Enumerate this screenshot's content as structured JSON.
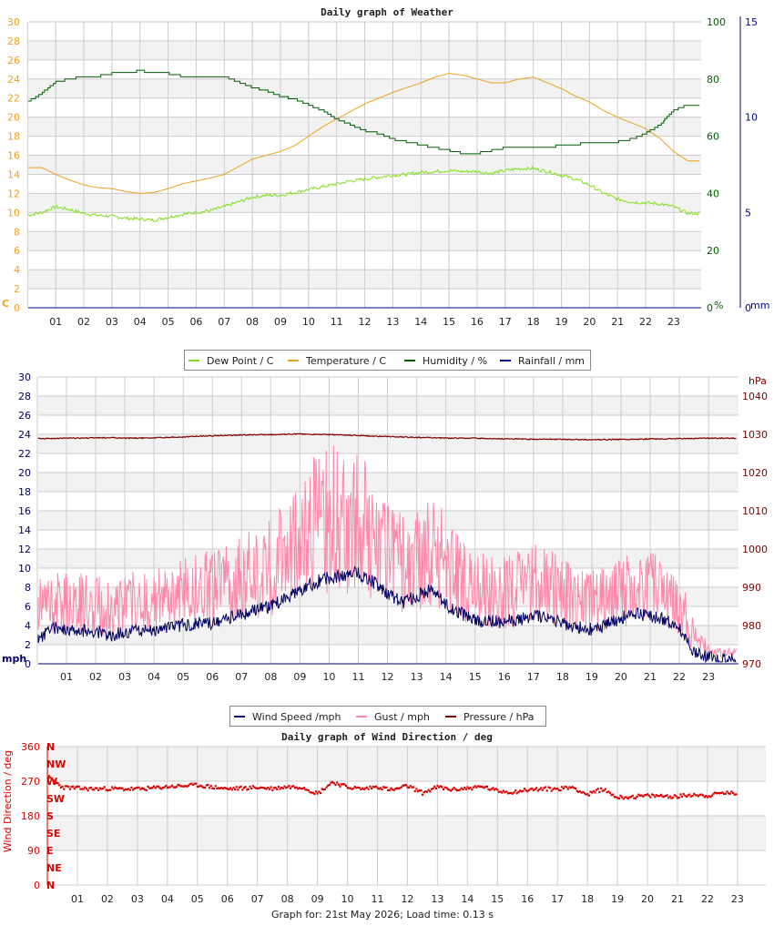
{
  "footer": "Graph for: 21st May 2026; Load time: 0.13 s",
  "colors": {
    "temperature": "#f0a020",
    "dewpoint": "#80e020",
    "humidity": "#006000",
    "rainfall": "#000099",
    "wind": "#000066",
    "gust": "#ff88aa",
    "pressure": "#800000",
    "direction": "#dd0000",
    "band": "#f2f2f2",
    "grid": "#cccccc"
  },
  "chart_data": [
    {
      "type": "line",
      "title": "Daily graph of Weather",
      "x_ticks": [
        "01",
        "02",
        "03",
        "04",
        "05",
        "06",
        "07",
        "08",
        "09",
        "10",
        "11",
        "12",
        "13",
        "14",
        "15",
        "16",
        "17",
        "18",
        "19",
        "20",
        "21",
        "22",
        "23"
      ],
      "left_axis": {
        "unit": "C",
        "range": [
          0,
          30
        ],
        "ticks": [
          "0",
          "2",
          "4",
          "6",
          "8",
          "10",
          "12",
          "14",
          "16",
          "18",
          "20",
          "22",
          "24",
          "26",
          "28",
          "30"
        ]
      },
      "right_axis_1": {
        "unit": "%",
        "range": [
          0,
          100
        ],
        "ticks": [
          "0",
          "20",
          "40",
          "60",
          "80",
          "100"
        ]
      },
      "right_axis_2": {
        "unit": "mm",
        "range": [
          0,
          15
        ],
        "ticks": [
          "0",
          "5",
          "10",
          "15"
        ]
      },
      "legend": [
        "Dew Point / C",
        "Temperature / C",
        "Humidity / %",
        "Rainfall / mm"
      ],
      "x_hours": [
        0,
        0.5,
        1,
        1.5,
        2,
        2.5,
        3,
        3.5,
        4,
        4.5,
        5,
        5.5,
        6,
        6.5,
        7,
        7.5,
        8,
        8.5,
        9,
        9.5,
        10,
        10.5,
        11,
        11.5,
        12,
        12.5,
        13,
        13.5,
        14,
        14.5,
        15,
        15.5,
        16,
        16.5,
        17,
        17.5,
        18,
        18.5,
        19,
        19.5,
        20,
        20.5,
        21,
        21.5,
        22,
        22.5,
        23,
        23.5
      ],
      "series": [
        {
          "name": "Temperature / C",
          "axis": "left",
          "values": [
            14.7,
            14.7,
            14.0,
            13.4,
            12.9,
            12.6,
            12.5,
            12.2,
            12.0,
            12.1,
            12.5,
            13.0,
            13.3,
            13.6,
            14.0,
            14.8,
            15.6,
            16.0,
            16.4,
            17.0,
            18.0,
            19.0,
            19.8,
            20.6,
            21.4,
            22.0,
            22.6,
            23.1,
            23.6,
            24.2,
            24.6,
            24.4,
            24.0,
            23.6,
            23.6,
            24.0,
            24.2,
            23.6,
            23.0,
            22.2,
            21.6,
            20.7,
            20.0,
            19.4,
            18.8,
            17.8,
            16.4,
            15.4
          ]
        },
        {
          "name": "Dew Point / C",
          "axis": "left",
          "values": [
            9.7,
            10.0,
            10.6,
            10.3,
            9.9,
            9.7,
            9.6,
            9.4,
            9.3,
            9.2,
            9.5,
            9.8,
            10.0,
            10.2,
            10.6,
            11.1,
            11.6,
            11.8,
            11.8,
            12.1,
            12.4,
            12.7,
            13.0,
            13.3,
            13.5,
            13.7,
            13.9,
            14.0,
            14.2,
            14.3,
            14.4,
            14.3,
            14.3,
            14.1,
            14.4,
            14.6,
            14.6,
            14.3,
            13.9,
            13.5,
            12.9,
            12.0,
            11.4,
            11.1,
            11.0,
            10.9,
            10.6,
            9.9
          ]
        },
        {
          "name": "Humidity / %",
          "axis": "right_1",
          "values": [
            72,
            75,
            79,
            80,
            81,
            81,
            82,
            82,
            83,
            82,
            82,
            81,
            81,
            81,
            81,
            79,
            77,
            76,
            74,
            73,
            71,
            69,
            66,
            64,
            62,
            61,
            59,
            58,
            57,
            56,
            55,
            54,
            54,
            55,
            56,
            56,
            56,
            56,
            57,
            57,
            58,
            58,
            58,
            59,
            61,
            64,
            69,
            71
          ]
        },
        {
          "name": "Rainfall / mm",
          "axis": "right_2",
          "values": [
            0,
            0,
            0,
            0,
            0,
            0,
            0,
            0,
            0,
            0,
            0,
            0,
            0,
            0,
            0,
            0,
            0,
            0,
            0,
            0,
            0,
            0,
            0,
            0,
            0,
            0,
            0,
            0,
            0,
            0,
            0,
            0,
            0,
            0,
            0,
            0,
            0,
            0,
            0,
            0,
            0,
            0,
            0,
            0,
            0,
            0,
            0,
            0
          ]
        }
      ]
    },
    {
      "type": "line",
      "title": "",
      "x_ticks": [
        "01",
        "02",
        "03",
        "04",
        "05",
        "06",
        "07",
        "08",
        "09",
        "10",
        "11",
        "12",
        "13",
        "14",
        "15",
        "16",
        "17",
        "18",
        "19",
        "20",
        "21",
        "22",
        "23"
      ],
      "left_axis": {
        "unit": "mph",
        "range": [
          0,
          30
        ],
        "ticks": [
          "0",
          "2",
          "4",
          "6",
          "8",
          "10",
          "12",
          "14",
          "16",
          "18",
          "20",
          "22",
          "24",
          "26",
          "28",
          "30"
        ]
      },
      "right_axis": {
        "unit": "hPa",
        "range": [
          970,
          1045
        ],
        "ticks": [
          "970",
          "980",
          "990",
          "1000",
          "1010",
          "1020",
          "1030",
          "1040"
        ]
      },
      "legend": [
        "Wind Speed /mph",
        "Gust / mph",
        "Pressure / hPa"
      ],
      "x_hours": [
        0,
        0.5,
        1,
        1.5,
        2,
        2.5,
        3,
        3.5,
        4,
        4.5,
        5,
        5.5,
        6,
        6.5,
        7,
        7.5,
        8,
        8.5,
        9,
        9.5,
        10,
        10.5,
        11,
        11.5,
        12,
        12.5,
        13,
        13.5,
        14,
        14.5,
        15,
        15.5,
        16,
        16.5,
        17,
        17.5,
        18,
        18.5,
        19,
        19.5,
        20,
        20.5,
        21,
        21.5,
        22,
        22.5,
        23,
        23.5
      ],
      "series": [
        {
          "name": "Wind Speed /mph",
          "axis": "left",
          "values": [
            2.5,
            3.8,
            3.6,
            3.5,
            3.4,
            3.0,
            3.3,
            3.5,
            3.3,
            3.8,
            4.1,
            4.2,
            4.3,
            4.8,
            5.2,
            5.6,
            6.0,
            6.8,
            7.6,
            8.5,
            9.0,
            9.3,
            9.5,
            8.6,
            7.4,
            6.4,
            7.1,
            7.7,
            6.2,
            5.3,
            4.5,
            4.4,
            4.4,
            4.6,
            5.1,
            4.7,
            4.2,
            3.8,
            3.6,
            4.1,
            4.8,
            5.2,
            5.0,
            4.6,
            3.7,
            1.3,
            0.6,
            0.4
          ]
        },
        {
          "name": "Gust / mph",
          "axis": "left",
          "values": [
            6.5,
            6.8,
            6.8,
            6.9,
            6.6,
            6.3,
            6.6,
            7.2,
            7.1,
            7.6,
            8.2,
            8.4,
            8.5,
            9.2,
            9.6,
            10.2,
            10.8,
            12.5,
            14.5,
            15.8,
            16.5,
            16.4,
            16.0,
            14.5,
            12.8,
            11.5,
            11.8,
            12.4,
            11.5,
            9.8,
            8.5,
            8.0,
            8.0,
            8.6,
            9.3,
            8.8,
            8.0,
            7.3,
            7.0,
            7.6,
            8.3,
            8.7,
            8.4,
            7.9,
            6.8,
            3.2,
            1.6,
            1.2
          ]
        },
        {
          "name": "Pressure / hPa",
          "axis": "right",
          "values": [
            1028.9,
            1028.9,
            1029.0,
            1029.0,
            1029.1,
            1029.1,
            1029.0,
            1029.0,
            1029.1,
            1029.2,
            1029.3,
            1029.5,
            1029.6,
            1029.7,
            1029.8,
            1029.9,
            1029.9,
            1030.0,
            1030.1,
            1030.0,
            1029.9,
            1029.8,
            1029.7,
            1029.5,
            1029.4,
            1029.3,
            1029.2,
            1029.1,
            1029.0,
            1029.0,
            1029.0,
            1028.9,
            1028.8,
            1028.8,
            1028.7,
            1028.7,
            1028.7,
            1028.6,
            1028.6,
            1028.6,
            1028.7,
            1028.7,
            1028.8,
            1028.8,
            1028.9,
            1028.9,
            1029.0,
            1029.0
          ]
        }
      ]
    },
    {
      "type": "scatter",
      "title": "Daily graph of Wind Direction / deg",
      "ylabel": "Wind Direction / deg",
      "x_ticks": [
        "01",
        "02",
        "03",
        "04",
        "05",
        "06",
        "07",
        "08",
        "09",
        "10",
        "11",
        "12",
        "13",
        "14",
        "15",
        "16",
        "17",
        "18",
        "19",
        "20",
        "21",
        "22",
        "23"
      ],
      "y_range": [
        0,
        360
      ],
      "y_ticks": [
        "0",
        "90",
        "180",
        "270",
        "360"
      ],
      "compass_labels": [
        "N",
        "NE",
        "E",
        "SE",
        "S",
        "SW",
        "W",
        "NW",
        "N"
      ],
      "x_hours": [
        0,
        0.5,
        1,
        1.5,
        2,
        2.5,
        3,
        3.5,
        4,
        4.5,
        5,
        5.5,
        6,
        6.5,
        7,
        7.5,
        8,
        8.5,
        9,
        9.5,
        10,
        10.5,
        11,
        11.5,
        12,
        12.5,
        13,
        13.5,
        14,
        14.5,
        15,
        15.5,
        16,
        16.5,
        17,
        17.5,
        18,
        18.5,
        19,
        19.5,
        20,
        20.5,
        21,
        21.5,
        22,
        22.5,
        23
      ],
      "values": [
        282,
        255,
        252,
        250,
        251,
        250,
        250,
        252,
        256,
        258,
        260,
        255,
        250,
        252,
        254,
        251,
        256,
        255,
        238,
        268,
        255,
        250,
        256,
        247,
        258,
        240,
        255,
        248,
        252,
        256,
        245,
        242,
        248,
        250,
        250,
        255,
        235,
        250,
        228,
        230,
        232,
        232,
        230,
        236,
        232,
        240,
        238
      ]
    }
  ]
}
